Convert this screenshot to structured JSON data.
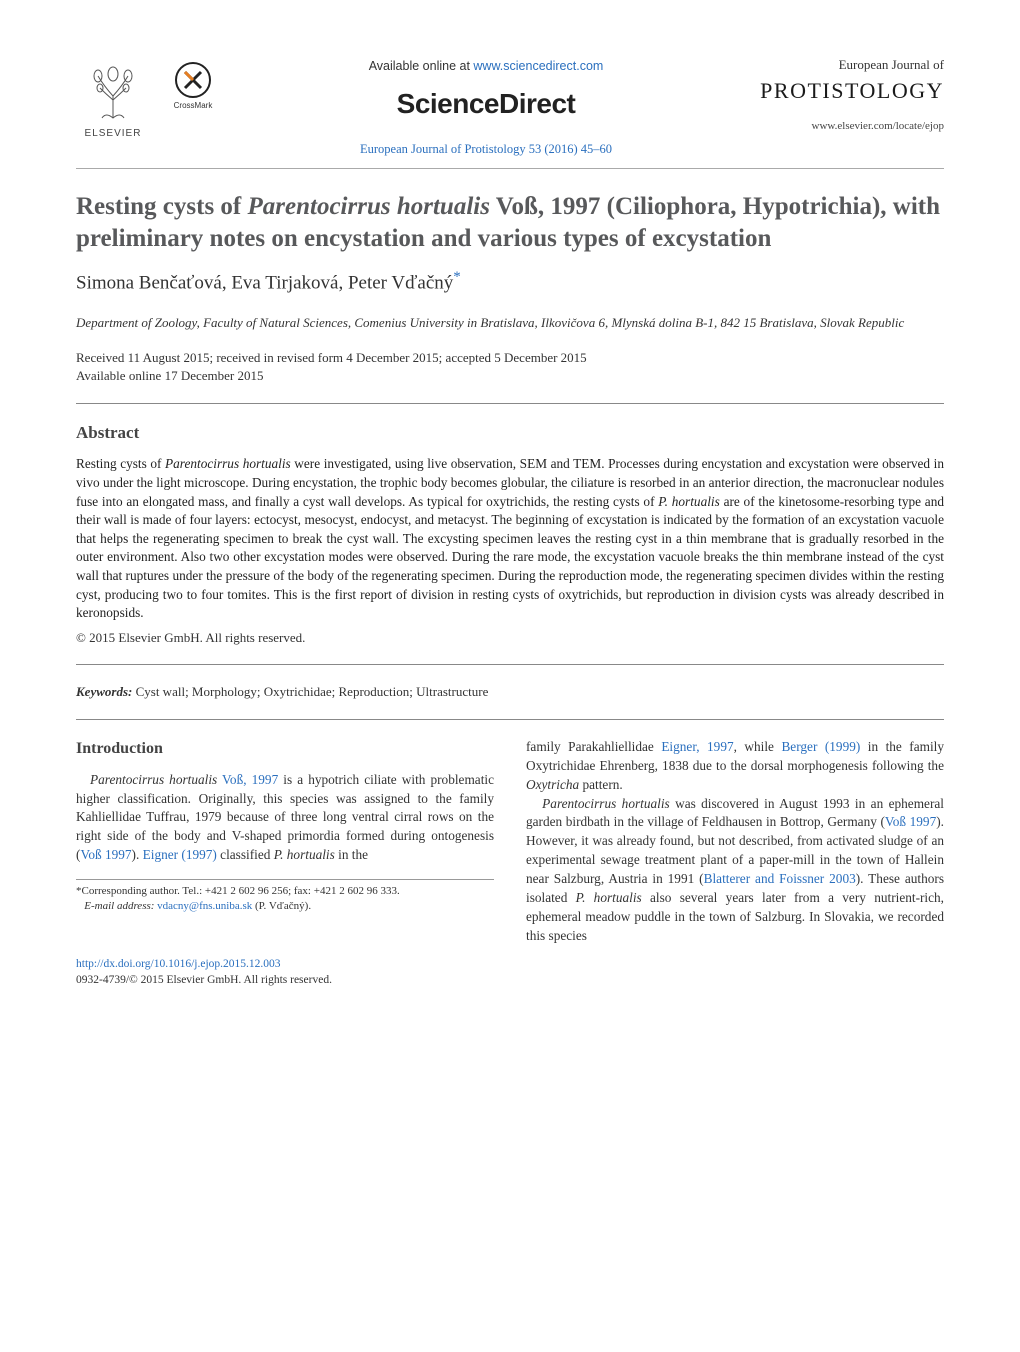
{
  "header": {
    "elsevier_label": "ELSEVIER",
    "crossmark_label": "CrossMark",
    "available_prefix": "Available online at ",
    "available_link": "www.sciencedirect.com",
    "sciencedirect": "ScienceDirect",
    "journal_ref": "European Journal of Protistology 53 (2016) 45–60",
    "journal_brand_line1": "European Journal of",
    "journal_brand_line2": "PROTISTOLOGY",
    "journal_locate": "www.elsevier.com/locate/ejop"
  },
  "title_html": "Resting cysts of <span class=\"ital\">Parentocirrus hortualis</span> Voß, 1997 (Ciliophora, Hypotrichia), with preliminary notes on encystation and various types of excystation",
  "authors_html": "Simona Benčaťová, Eva Tirjaková, Peter Vďačný<sup>*</sup>",
  "affiliation": "Department of Zoology, Faculty of Natural Sciences, Comenius University in Bratislava, Ilkovičova 6, Mlynská dolina B-1, 842 15 Bratislava, Slovak Republic",
  "dates_line1": "Received 11 August 2015; received in revised form 4 December 2015; accepted 5 December 2015",
  "dates_line2": "Available online 17 December 2015",
  "abstract_heading": "Abstract",
  "abstract_html": "Resting cysts of <span class=\"ital\">Parentocirrus hortualis</span> were investigated, using live observation, SEM and TEM. Processes during encystation and excystation were observed in vivo under the light microscope. During encystation, the trophic body becomes globular, the ciliature is resorbed in an anterior direction, the macronuclear nodules fuse into an elongated mass, and finally a cyst wall develops. As typical for oxytrichids, the resting cysts of <span class=\"ital\">P. hortualis</span> are of the kinetosome-resorbing type and their wall is made of four layers: ectocyst, mesocyst, endocyst, and metacyst. The beginning of excystation is indicated by the formation of an excystation vacuole that helps the regenerating specimen to break the cyst wall. The excysting specimen leaves the resting cyst in a thin membrane that is gradually resorbed in the outer environment. Also two other excystation modes were observed. During the rare mode, the excystation vacuole breaks the thin membrane instead of the cyst wall that ruptures under the pressure of the body of the regenerating specimen. During the reproduction mode, the regenerating specimen divides within the resting cyst, producing two to four tomites. This is the first report of division in resting cysts of oxytrichids, but reproduction in division cysts was already described in keronopsids.",
  "copyright": "© 2015 Elsevier GmbH. All rights reserved.",
  "keywords_label": "Keywords:",
  "keywords_text": " Cyst wall; Morphology; Oxytrichidae; Reproduction; Ultrastructure",
  "intro_heading": "Introduction",
  "col_left_html": "<span class=\"ital\">Parentocirrus hortualis</span> <span class=\"link\">Voß, 1997</span> is a hypotrich ciliate with problematic higher classification. Originally, this species was assigned to the family Kahliellidae Tuffrau, 1979 because of three long ventral cirral rows on the right side of the body and V-shaped primordia formed during ontogenesis (<span class=\"link\">Voß 1997</span>). <span class=\"link\">Eigner (1997)</span> classified <span class=\"ital\">P. hortualis</span> in the",
  "col_right_html": "family Parakahliellidae <span class=\"link\">Eigner, 1997</span>, while <span class=\"link\">Berger (1999)</span> in the family Oxytrichidae Ehrenberg, 1838 due to the dorsal morphogenesis following the <span class=\"ital\">Oxytricha</span> pattern.<br>&nbsp;&nbsp;&nbsp;<span class=\"ital\">Parentocirrus hortualis</span> was discovered in August 1993 in an ephemeral garden birdbath in the village of Feldhausen in Bottrop, Germany (<span class=\"link\">Voß 1997</span>). However, it was already found, but not described, from activated sludge of an experimental sewage treatment plant of a paper-mill in the town of Hallein near Salzburg, Austria in 1991 (<span class=\"link\">Blatterer and Foissner 2003</span>). These authors isolated <span class=\"ital\">P. hortualis</span> also several years later from a very nutrient-rich, ephemeral meadow puddle in the town of Salzburg. In Slovakia, we recorded this species",
  "footnote_corr": "*Corresponding author. Tel.: +421 2 602 96 256; fax: +421 2 602 96 333.",
  "footnote_email_label": "E-mail address:",
  "footnote_email": "vdacny@fns.uniba.sk",
  "footnote_whom": "(P. Vďačný).",
  "doi_url": "http://dx.doi.org/10.1016/j.ejop.2015.12.003",
  "issn_line": "0932-4739/© 2015 Elsevier GmbH. All rights reserved.",
  "colors": {
    "link": "#2a6fbe",
    "heading_gray": "#58595b",
    "body_text": "#333333",
    "rule": "#888888"
  }
}
